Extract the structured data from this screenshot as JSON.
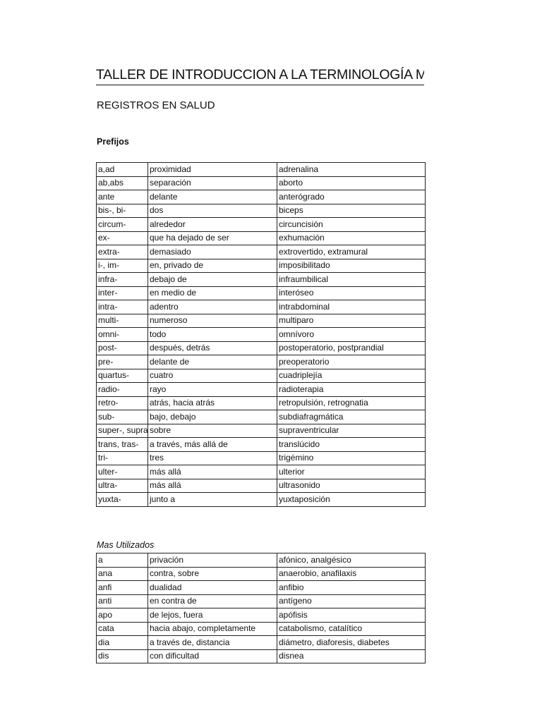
{
  "header": {
    "title": "TALLER DE INTRODUCCION A LA TERMINOLOGÍA M",
    "subtitle": "REGISTROS EN SALUD"
  },
  "sections": [
    {
      "heading": "Prefijos",
      "rows": [
        [
          "a,ad",
          "proximidad",
          "adrenalina"
        ],
        [
          "ab,abs",
          "separación",
          "aborto"
        ],
        [
          "ante",
          "delante",
          "anterógrado"
        ],
        [
          "bis-, bi-",
          "dos",
          "biceps"
        ],
        [
          "circum-",
          "alrededor",
          "circuncisión"
        ],
        [
          "ex-",
          "que ha dejado de ser",
          "exhumación"
        ],
        [
          "extra-",
          "demasiado",
          "extrovertido, extramural"
        ],
        [
          "i-, im-",
          "en, privado de",
          "imposibilitado"
        ],
        [
          "infra-",
          "debajo de",
          "infraumbilical"
        ],
        [
          "inter-",
          "en medio de",
          "interóseo"
        ],
        [
          "intra-",
          "adentro",
          "intrabdominal"
        ],
        [
          "multi-",
          "numeroso",
          "multiparo"
        ],
        [
          "omni-",
          "todo",
          "omnívoro"
        ],
        [
          "post-",
          "después, detrás",
          "postoperatorio, postprandial"
        ],
        [
          "pre-",
          "delante de",
          "preoperatorio"
        ],
        [
          "quartus-",
          "cuatro",
          "cuadriplejía"
        ],
        [
          "radio-",
          "rayo",
          "radioterapia"
        ],
        [
          "retro-",
          "atrás, hacia atrás",
          "retropulsión, retrognatia"
        ],
        [
          "sub-",
          "bajo, debajo",
          "subdiafragmática"
        ],
        [
          "super-, supra",
          "sobre",
          "supraventricular"
        ],
        [
          "trans, tras-",
          "a través, más allá de",
          "translúcido"
        ],
        [
          "tri-",
          "tres",
          "trigémino"
        ],
        [
          "ulter-",
          "más allá",
          "ulterior"
        ],
        [
          "ultra-",
          "más allá",
          "ultrasonido"
        ],
        [
          "yuxta-",
          "junto a",
          "yuxtaposición"
        ]
      ]
    },
    {
      "heading": "Mas Utilizados",
      "rows": [
        [
          "a",
          "privación",
          "afónico, analgésico"
        ],
        [
          "ana",
          "contra, sobre",
          "anaerobio, anafilaxis"
        ],
        [
          "anfi",
          "dualidad",
          "anfibio"
        ],
        [
          "anti",
          "en contra de",
          "antígeno"
        ],
        [
          "apo",
          "de lejos, fuera",
          "apófisis"
        ],
        [
          "cata",
          "hacia abajo, completamente",
          "catabolismo, catalítico"
        ],
        [
          "dia",
          "a través de, distancia",
          "diámetro, diaforesis, diabetes"
        ],
        [
          "dis",
          "con dificultad",
          "disnea"
        ]
      ]
    }
  ]
}
